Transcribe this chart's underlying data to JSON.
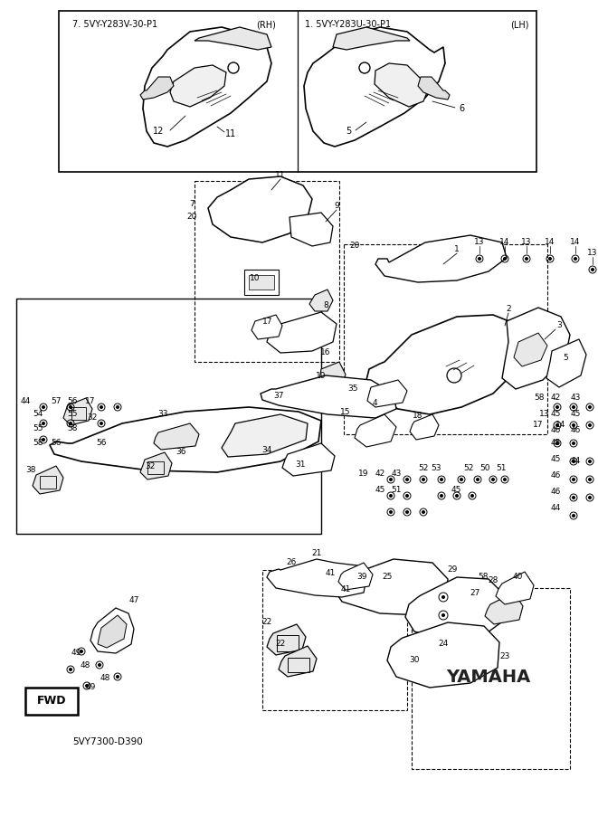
{
  "fig_width": 6.61,
  "fig_height": 9.13,
  "dpi": 100,
  "bg": "#ffffff",
  "top_left_label": "7. 5VY-Y283V-30-P1",
  "top_left_side": "(RH)",
  "top_right_label": "1. 5VY-Y283U-30-P1",
  "top_right_side": "(LH)",
  "yamaha_text": "YAMAHA",
  "fwd_text": "FWD",
  "part_code": "5VY7300-D390",
  "lc": "#000000",
  "gray": "#888888"
}
